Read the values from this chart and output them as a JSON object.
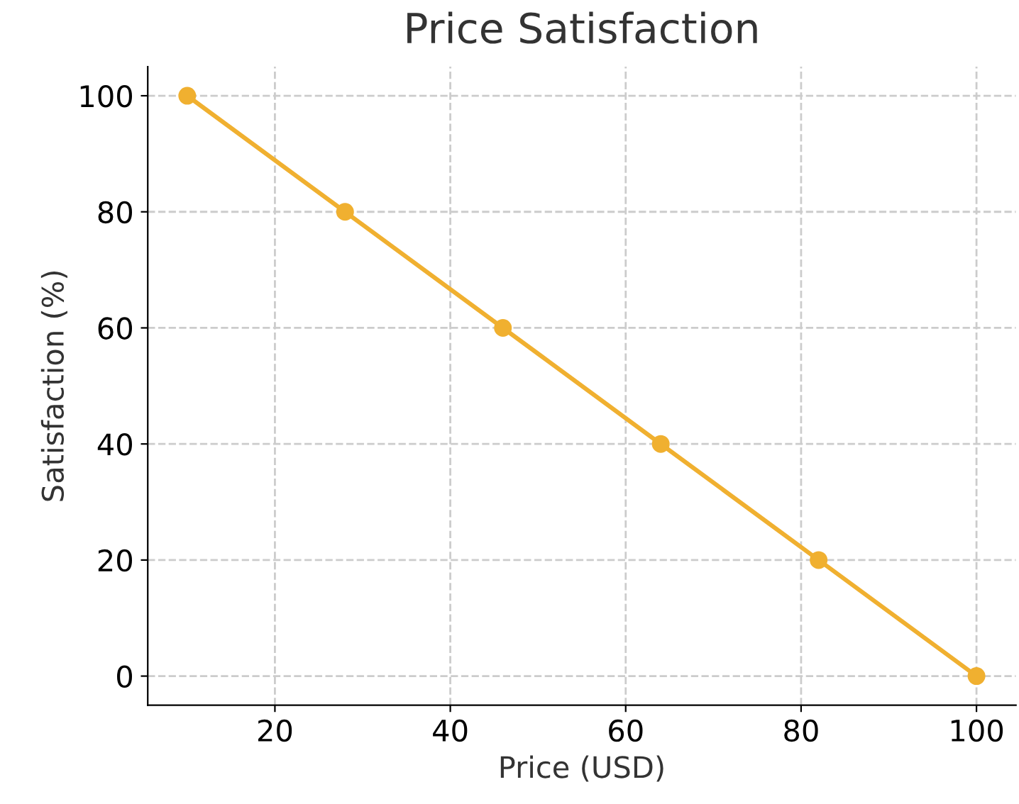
{
  "chart_data": {
    "type": "line",
    "title": "Price Satisfaction",
    "xlabel": "Price (USD)",
    "ylabel": "Satisfaction (%)",
    "x": [
      10,
      28,
      46,
      64,
      82,
      100
    ],
    "series": [
      {
        "color": "#f0b030",
        "values": [
          100,
          80,
          60,
          40,
          20,
          0
        ]
      }
    ],
    "xlim": [
      5.5,
      104.5
    ],
    "ylim": [
      -5,
      105
    ],
    "xticks": [
      20,
      40,
      60,
      80,
      100
    ],
    "yticks": [
      0,
      20,
      40,
      60,
      80,
      100
    ],
    "grid": true,
    "marker": "circle",
    "line_style": "solid"
  }
}
